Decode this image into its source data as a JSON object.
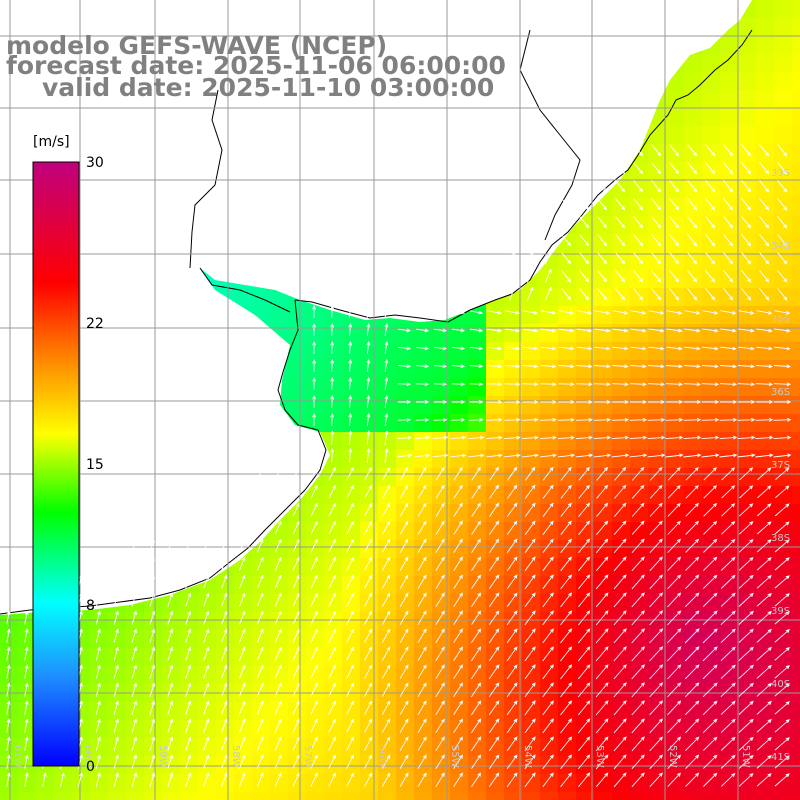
{
  "header": {
    "model": "modelo GEFS-WAVE (NCEP)",
    "forecast_date": "forecast date: 2025-11-06 06:00:00",
    "valid_date": "valid date: 2025-11-10 03:00:00"
  },
  "colorbar": {
    "unit": "[m/s]",
    "min": 0,
    "max": 30,
    "ticks": [
      {
        "value": 30,
        "label": "30"
      },
      {
        "value": 22,
        "label": "22"
      },
      {
        "value": 15,
        "label": "15"
      },
      {
        "value": 8,
        "label": "8"
      },
      {
        "value": 0,
        "label": "0"
      }
    ],
    "stops": [
      "#0000ff",
      "#1e90ff",
      "#00ffff",
      "#00ff00",
      "#ffff00",
      "#ff8000",
      "#ff0000",
      "#c0007f"
    ]
  },
  "map": {
    "lon_labels": [
      "61W",
      "60W",
      "59W",
      "58W",
      "57W",
      "56W",
      "55W",
      "54W",
      "53W",
      "52W",
      "51W"
    ],
    "lat_labels": [
      "33S",
      "34S",
      "35S",
      "36S",
      "37S",
      "38S",
      "39S",
      "40S",
      "41S"
    ],
    "arrow_color": "#ffffff",
    "land_color": "#ffffff",
    "coastline_color": "#000000",
    "grid_color": "#999999"
  }
}
